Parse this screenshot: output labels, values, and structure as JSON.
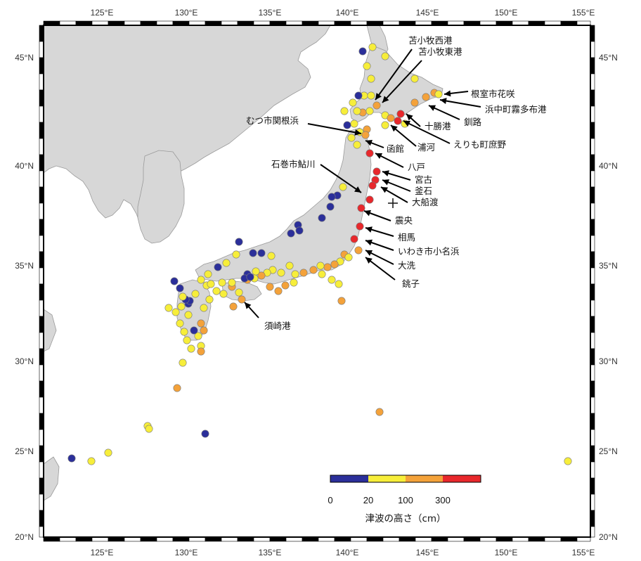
{
  "axes": {
    "lon_labels": [
      "125°E",
      "130°E",
      "135°E",
      "140°E",
      "145°E",
      "150°E",
      "155°E"
    ],
    "lat_labels": [
      "45°N",
      "40°N",
      "35°N",
      "30°N",
      "25°N",
      "20°N"
    ]
  },
  "station_labels": [
    "苫小牧西港",
    "苫小牧東港",
    "根室市花咲",
    "浜中町霧多布港",
    "釧路",
    "十勝港",
    "えりも町庶野",
    "浦河",
    "むつ市関根浜",
    "函館",
    "石巻市鮎川",
    "八戸",
    "宮古",
    "釜石",
    "大船渡",
    "震央",
    "相馬",
    "いわき市小名浜",
    "大洗",
    "銚子",
    "須崎港"
  ],
  "legend": {
    "title": "津波の高さ（cm）",
    "ticks": [
      "0",
      "20",
      "100",
      "300"
    ],
    "colors": [
      "#2b2f9a",
      "#f7ee3a",
      "#f4a23a",
      "#e8282c"
    ]
  },
  "colors": {
    "blue": "#2b2f9a",
    "yellow": "#f7ee3a",
    "orange": "#f4a23a",
    "red": "#e8282c",
    "land": "#d7d7d7"
  }
}
